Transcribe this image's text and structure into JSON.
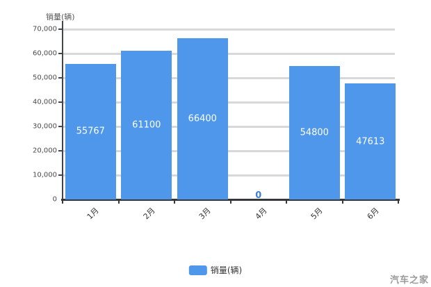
{
  "watermark": "汽车之家",
  "chart_data": {
    "type": "bar",
    "title": "",
    "xlabel": "",
    "ylabel": "销量(辆)",
    "series_name": "销量(辆)",
    "categories": [
      "1月",
      "2月",
      "3月",
      "4月",
      "5月",
      "6月"
    ],
    "values": [
      55767,
      61100,
      66400,
      0,
      54800,
      47613
    ],
    "ylim": [
      0,
      70000
    ],
    "ytick_interval": 10000,
    "yticks": [
      "70,000",
      "60,000",
      "50,000",
      "40,000",
      "30,000",
      "20,000",
      "10,000",
      "0"
    ],
    "grid": true,
    "legend_position": "bottom",
    "colors": {
      "bar": "#4E97EA",
      "grid": "#D8D8D8",
      "axis": "#34383C",
      "bar_label": "#FFFFFF",
      "zero_label": "#3D7FD9",
      "tick_text": "#4A4A4A",
      "watermark": "#999999"
    }
  }
}
